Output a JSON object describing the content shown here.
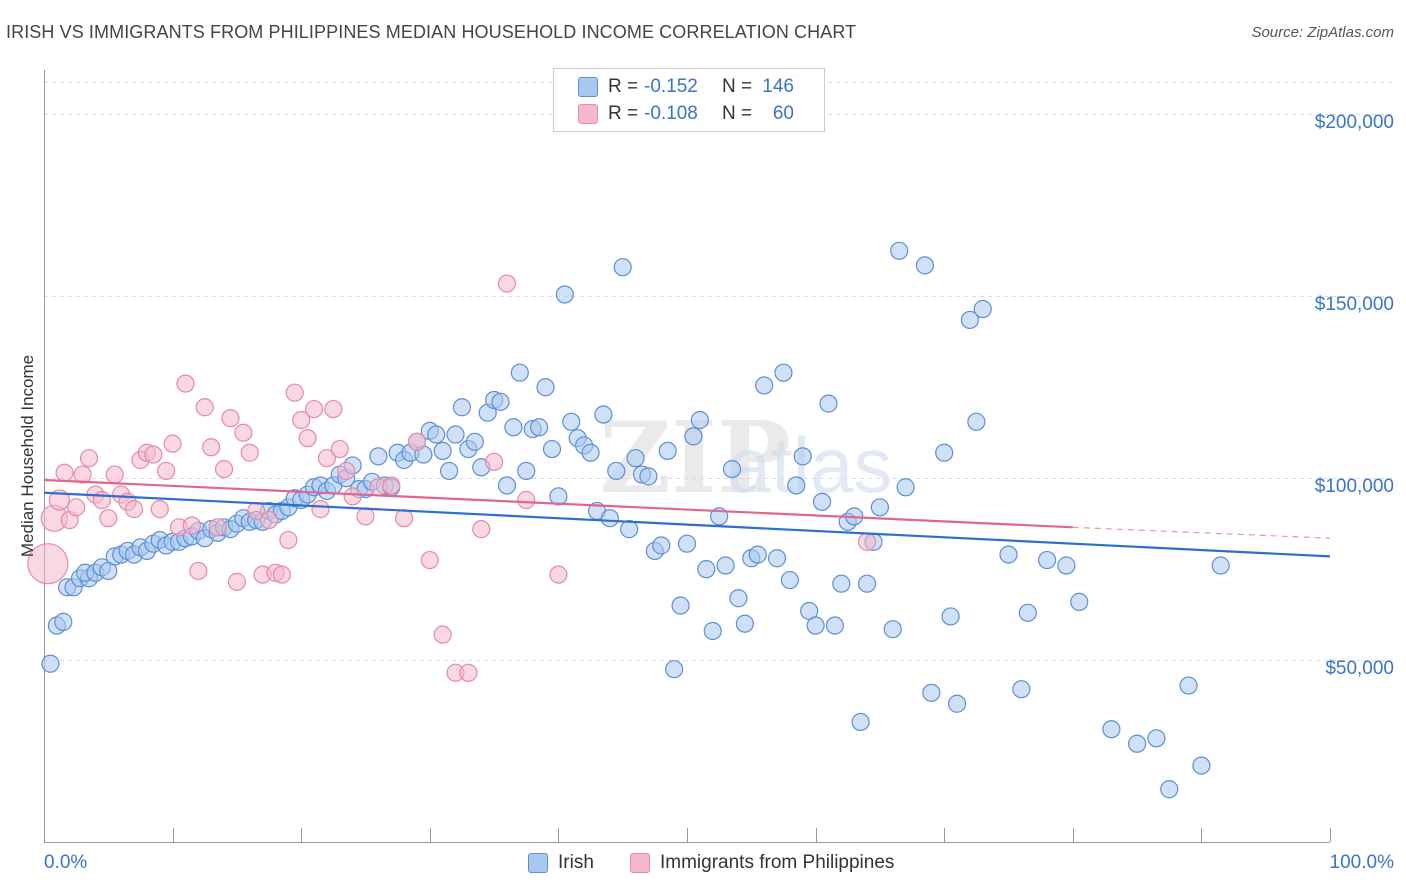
{
  "title": "IRISH VS IMMIGRANTS FROM PHILIPPINES MEDIAN HOUSEHOLD INCOME CORRELATION CHART",
  "source": "Source: ZipAtlas.com",
  "watermark": "ZIPatlas",
  "colors": {
    "irish_fill": "#a9c8f0",
    "irish_stroke": "#5b8fd6",
    "irish_line": "#2d6fcc",
    "phil_fill": "#f6b8cb",
    "phil_stroke": "#e58aa7",
    "phil_line": "#e06690",
    "tick_text": "#3a74c9",
    "grid": "#dddddd"
  },
  "legend": {
    "rows": [
      {
        "r_label": "R =",
        "r_value": "-0.152",
        "n_label": "N =",
        "n_value": "146"
      },
      {
        "r_label": "R =",
        "r_value": "-0.108",
        "n_label": "N =",
        "n_value": "60"
      }
    ]
  },
  "bottom_legend": [
    "Irish",
    "Immigrants from Philippines"
  ],
  "chart_data": {
    "type": "scatter",
    "xlabel": "",
    "ylabel": "Median Household Income",
    "xlim": [
      0,
      100
    ],
    "ylim": [
      0,
      210000
    ],
    "x_tick_labels": [
      "0.0%",
      "100.0%"
    ],
    "y_ticks": [
      {
        "value": 50000,
        "label": "$50,000"
      },
      {
        "value": 100000,
        "label": "$100,000"
      },
      {
        "value": 150000,
        "label": "$150,000"
      },
      {
        "value": 200000,
        "label": "$200,000"
      }
    ],
    "series": [
      {
        "name": "Irish",
        "trend": {
          "x0": 0,
          "y0": 96000,
          "x1": 100,
          "y1": 78500
        },
        "points": [
          [
            0.5,
            49000
          ],
          [
            1.0,
            59500
          ],
          [
            1.5,
            60500
          ],
          [
            1.8,
            70000
          ],
          [
            2.3,
            70000
          ],
          [
            2.8,
            72500
          ],
          [
            3.5,
            72500
          ],
          [
            3.2,
            74000
          ],
          [
            4.0,
            74000
          ],
          [
            4.5,
            75500
          ],
          [
            5.0,
            74500
          ],
          [
            5.5,
            78500
          ],
          [
            6.0,
            79000
          ],
          [
            6.5,
            80000
          ],
          [
            7.0,
            79000
          ],
          [
            7.5,
            81000
          ],
          [
            8.0,
            80000
          ],
          [
            8.5,
            82000
          ],
          [
            9.0,
            83000
          ],
          [
            9.5,
            81500
          ],
          [
            10.0,
            82500
          ],
          [
            10.5,
            82500
          ],
          [
            11.0,
            83500
          ],
          [
            11.5,
            84000
          ],
          [
            12.0,
            85500
          ],
          [
            12.5,
            83500
          ],
          [
            13.0,
            86000
          ],
          [
            13.5,
            85000
          ],
          [
            14.0,
            86500
          ],
          [
            14.5,
            86000
          ],
          [
            15.0,
            87500
          ],
          [
            15.5,
            89000
          ],
          [
            16.0,
            88000
          ],
          [
            16.5,
            88500
          ],
          [
            17.0,
            88000
          ],
          [
            17.5,
            91000
          ],
          [
            18.0,
            90000
          ],
          [
            18.5,
            91000
          ],
          [
            19.0,
            92000
          ],
          [
            19.5,
            94500
          ],
          [
            20.0,
            94000
          ],
          [
            20.5,
            95500
          ],
          [
            21.0,
            97500
          ],
          [
            21.5,
            98000
          ],
          [
            22.0,
            96500
          ],
          [
            22.5,
            98000
          ],
          [
            23.0,
            101000
          ],
          [
            23.5,
            100000
          ],
          [
            24.0,
            103500
          ],
          [
            24.5,
            97000
          ],
          [
            25.0,
            97000
          ],
          [
            25.5,
            99000
          ],
          [
            26.0,
            106000
          ],
          [
            26.5,
            98000
          ],
          [
            27.0,
            97500
          ],
          [
            27.5,
            107000
          ],
          [
            28.0,
            105000
          ],
          [
            28.5,
            107000
          ],
          [
            29.0,
            110000
          ],
          [
            29.5,
            106500
          ],
          [
            30.0,
            113000
          ],
          [
            30.5,
            112000
          ],
          [
            31.0,
            107500
          ],
          [
            31.5,
            102000
          ],
          [
            32.0,
            112000
          ],
          [
            32.5,
            119500
          ],
          [
            33.0,
            108000
          ],
          [
            33.5,
            110000
          ],
          [
            34.0,
            103000
          ],
          [
            34.5,
            118000
          ],
          [
            35.0,
            121500
          ],
          [
            35.5,
            121000
          ],
          [
            36.0,
            98000
          ],
          [
            36.5,
            114000
          ],
          [
            37.0,
            129000
          ],
          [
            37.5,
            102000
          ],
          [
            38.0,
            113500
          ],
          [
            38.5,
            114000
          ],
          [
            39.0,
            125000
          ],
          [
            39.5,
            108000
          ],
          [
            40.0,
            95000
          ],
          [
            40.5,
            150500
          ],
          [
            41.0,
            115500
          ],
          [
            41.5,
            111000
          ],
          [
            42.0,
            109000
          ],
          [
            42.5,
            107000
          ],
          [
            43.0,
            91000
          ],
          [
            43.5,
            117500
          ],
          [
            44.0,
            89000
          ],
          [
            44.5,
            102000
          ],
          [
            45.0,
            158000
          ],
          [
            45.5,
            86000
          ],
          [
            46.0,
            105500
          ],
          [
            46.5,
            101000
          ],
          [
            47.0,
            100500
          ],
          [
            47.5,
            80000
          ],
          [
            48.0,
            81500
          ],
          [
            48.5,
            107500
          ],
          [
            49.0,
            47500
          ],
          [
            49.5,
            65000
          ],
          [
            50.0,
            82000
          ],
          [
            50.5,
            111500
          ],
          [
            51.0,
            116000
          ],
          [
            51.5,
            75000
          ],
          [
            52.0,
            58000
          ],
          [
            52.5,
            89500
          ],
          [
            53.0,
            76000
          ],
          [
            53.5,
            102500
          ],
          [
            54.0,
            67000
          ],
          [
            54.5,
            60000
          ],
          [
            55.0,
            78000
          ],
          [
            55.5,
            79000
          ],
          [
            56.0,
            125500
          ],
          [
            57.0,
            78000
          ],
          [
            57.5,
            129000
          ],
          [
            58.0,
            72000
          ],
          [
            58.5,
            98000
          ],
          [
            59.0,
            106000
          ],
          [
            59.5,
            63500
          ],
          [
            60.0,
            59500
          ],
          [
            60.5,
            93500
          ],
          [
            61.0,
            120500
          ],
          [
            61.5,
            59500
          ],
          [
            62.0,
            71000
          ],
          [
            62.5,
            88000
          ],
          [
            63.0,
            89500
          ],
          [
            63.5,
            33000
          ],
          [
            64.0,
            71000
          ],
          [
            64.5,
            82500
          ],
          [
            65.0,
            92000
          ],
          [
            66.0,
            58500
          ],
          [
            66.5,
            162500
          ],
          [
            67.0,
            97500
          ],
          [
            68.5,
            158500
          ],
          [
            69.0,
            41000
          ],
          [
            70.0,
            107000
          ],
          [
            70.5,
            62000
          ],
          [
            71.0,
            38000
          ],
          [
            72.0,
            143500
          ],
          [
            72.5,
            115500
          ],
          [
            73.0,
            146500
          ],
          [
            75.0,
            79000
          ],
          [
            76.0,
            42000
          ],
          [
            76.5,
            63000
          ],
          [
            78.0,
            77500
          ],
          [
            79.5,
            76000
          ],
          [
            80.5,
            66000
          ],
          [
            83.0,
            31000
          ],
          [
            85.0,
            27000
          ],
          [
            86.5,
            28500
          ],
          [
            87.5,
            14500
          ],
          [
            89.0,
            43000
          ],
          [
            90.0,
            21000
          ],
          [
            91.5,
            76000
          ]
        ]
      },
      {
        "name": "Immigrants from Philippines",
        "trend": {
          "x0": 0,
          "y0": 99500,
          "x1": 80,
          "y1": 86500,
          "dash_x1": 100,
          "dash_y1": 83500
        },
        "points": [
          [
            0.3,
            76500
          ],
          [
            0.8,
            89000
          ],
          [
            1.2,
            94000
          ],
          [
            1.6,
            101500
          ],
          [
            2.0,
            88500
          ],
          [
            2.5,
            92000
          ],
          [
            3.0,
            101000
          ],
          [
            3.5,
            105500
          ],
          [
            4.0,
            95500
          ],
          [
            4.5,
            94000
          ],
          [
            5.0,
            89000
          ],
          [
            5.5,
            101000
          ],
          [
            6.0,
            95500
          ],
          [
            6.5,
            93500
          ],
          [
            7.0,
            91500
          ],
          [
            7.5,
            105000
          ],
          [
            8.0,
            107000
          ],
          [
            8.5,
            106500
          ],
          [
            9.0,
            91500
          ],
          [
            9.5,
            102000
          ],
          [
            10.0,
            109500
          ],
          [
            10.5,
            86500
          ],
          [
            11.0,
            126000
          ],
          [
            11.5,
            87000
          ],
          [
            12.0,
            74500
          ],
          [
            12.5,
            119500
          ],
          [
            13.0,
            108500
          ],
          [
            13.5,
            86500
          ],
          [
            14.0,
            102500
          ],
          [
            14.5,
            116500
          ],
          [
            15.0,
            71500
          ],
          [
            15.5,
            112500
          ],
          [
            16.0,
            107000
          ],
          [
            16.5,
            91000
          ],
          [
            17.0,
            73500
          ],
          [
            17.5,
            88500
          ],
          [
            18.0,
            74000
          ],
          [
            18.5,
            73500
          ],
          [
            19.0,
            83000
          ],
          [
            19.5,
            123500
          ],
          [
            20.0,
            116000
          ],
          [
            20.5,
            111000
          ],
          [
            21.0,
            119000
          ],
          [
            21.5,
            91500
          ],
          [
            22.0,
            105500
          ],
          [
            22.5,
            119000
          ],
          [
            23.0,
            108000
          ],
          [
            23.5,
            102000
          ],
          [
            24.0,
            95000
          ],
          [
            25.0,
            89500
          ],
          [
            26.0,
            97500
          ],
          [
            27.0,
            98000
          ],
          [
            28.0,
            89000
          ],
          [
            29.0,
            110000
          ],
          [
            30.0,
            77500
          ],
          [
            31.0,
            57000
          ],
          [
            32.0,
            46500
          ],
          [
            33.0,
            46500
          ],
          [
            34.0,
            86000
          ],
          [
            35.0,
            104500
          ],
          [
            36.0,
            153500
          ],
          [
            37.5,
            94000
          ],
          [
            40.0,
            73500
          ],
          [
            64.0,
            82500
          ]
        ]
      }
    ]
  }
}
